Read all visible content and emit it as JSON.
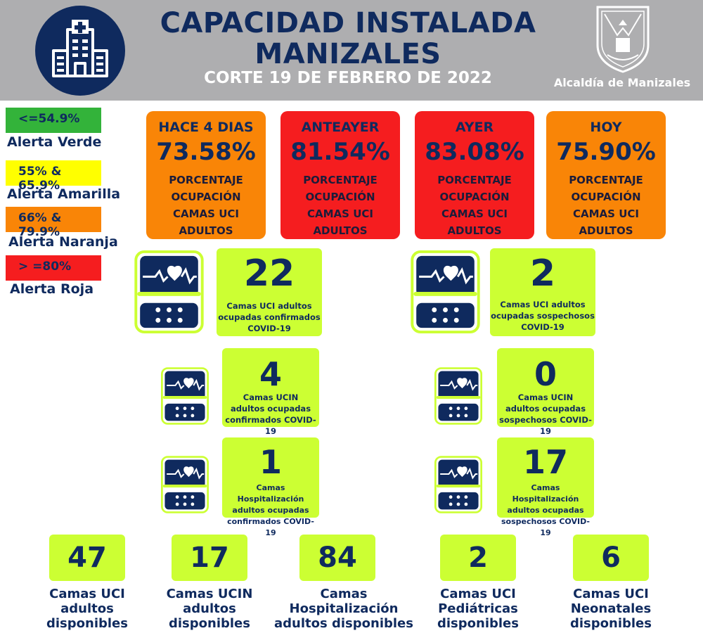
{
  "header": {
    "title_line1": "CAPACIDAD INSTALADA",
    "title_line2": "MANIZALES",
    "subtitle": "CORTE 19 DE FEBRERO DE 2022",
    "logo_text": "Alcaldía de Manizales",
    "hospital_icon": "hospital-building-icon",
    "bg_color": "#aeaeb0",
    "accent_color": "#0f2a5e"
  },
  "legend": [
    {
      "range": "<=54.9%",
      "label": "Alerta Verde",
      "color": "#33b33a"
    },
    {
      "range": "55% & 65.9%",
      "label": "Alerta Amarilla",
      "color": "#ffff00"
    },
    {
      "range": "66% & 79.9%",
      "label": "Alerta Naranja",
      "color": "#f98507"
    },
    {
      "range": "> =80%",
      "label": "Alerta Roja",
      "color": "#f51d1f"
    }
  ],
  "days": [
    {
      "title": "HACE 4 DIAS",
      "value": "73.58%",
      "line1": "PORCENTAJE",
      "line2": "OCUPACIÓN",
      "line3": "CAMAS UCI",
      "line4": "ADULTOS",
      "alert": "orange"
    },
    {
      "title": "ANTEAYER",
      "value": "81.54%",
      "line1": "PORCENTAJE",
      "line2": "OCUPACIÓN",
      "line3": "CAMAS UCI",
      "line4": "ADULTOS",
      "alert": "red"
    },
    {
      "title": "AYER",
      "value": "83.08%",
      "line1": "PORCENTAJE",
      "line2": "OCUPACIÓN",
      "line3": "CAMAS UCI",
      "line4": "ADULTOS",
      "alert": "red"
    },
    {
      "title": "HOY",
      "value": "75.90%",
      "line1": "PORCENTAJE",
      "line2": "OCUPACIÓN",
      "line3": "CAMAS UCI",
      "line4": "ADULTOS",
      "alert": "orange"
    }
  ],
  "occupied": [
    {
      "value": "22",
      "line1": "Camas UCI adultos",
      "line2": "ocupadas confirmados",
      "line3": "COVID-19"
    },
    {
      "value": "2",
      "line1": "Camas UCI adultos",
      "line2": "ocupadas sospechosos",
      "line3": "COVID-19"
    },
    {
      "value": "4",
      "line1": "Camas  UCIN",
      "line2": "adultos ocupadas",
      "line3": "confirmados COVID-19"
    },
    {
      "value": "0",
      "line1": "Camas  UCIN",
      "line2": "adultos ocupadas",
      "line3": "sospechosos COVID-19"
    },
    {
      "value": "1",
      "line1": "Camas  Hospitalización",
      "line2": "adultos ocupadas",
      "line3": "confirmados COVID-19"
    },
    {
      "value": "17",
      "line1": "Camas  Hospitalización",
      "line2": "adultos ocupadas",
      "line3": "sospechosos COVID-19"
    }
  ],
  "available": [
    {
      "value": "47",
      "line1": "Camas UCI",
      "line2": "adultos",
      "line3": "disponibles"
    },
    {
      "value": "17",
      "line1": "Camas UCIN",
      "line2": "adultos",
      "line3": "disponibles"
    },
    {
      "value": "84",
      "line1": "Camas  Hospitalización",
      "line2": "adultos disponibles",
      "line3": ""
    },
    {
      "value": "2",
      "line1": "Camas  UCI",
      "line2": "Pediátricas",
      "line3": "disponibles"
    },
    {
      "value": "6",
      "line1": "Camas  UCI",
      "line2": "Neonatales",
      "line3": "disponibles"
    }
  ],
  "monitor_icon": "heart-monitor-icon",
  "stat_color": "#ccff33"
}
